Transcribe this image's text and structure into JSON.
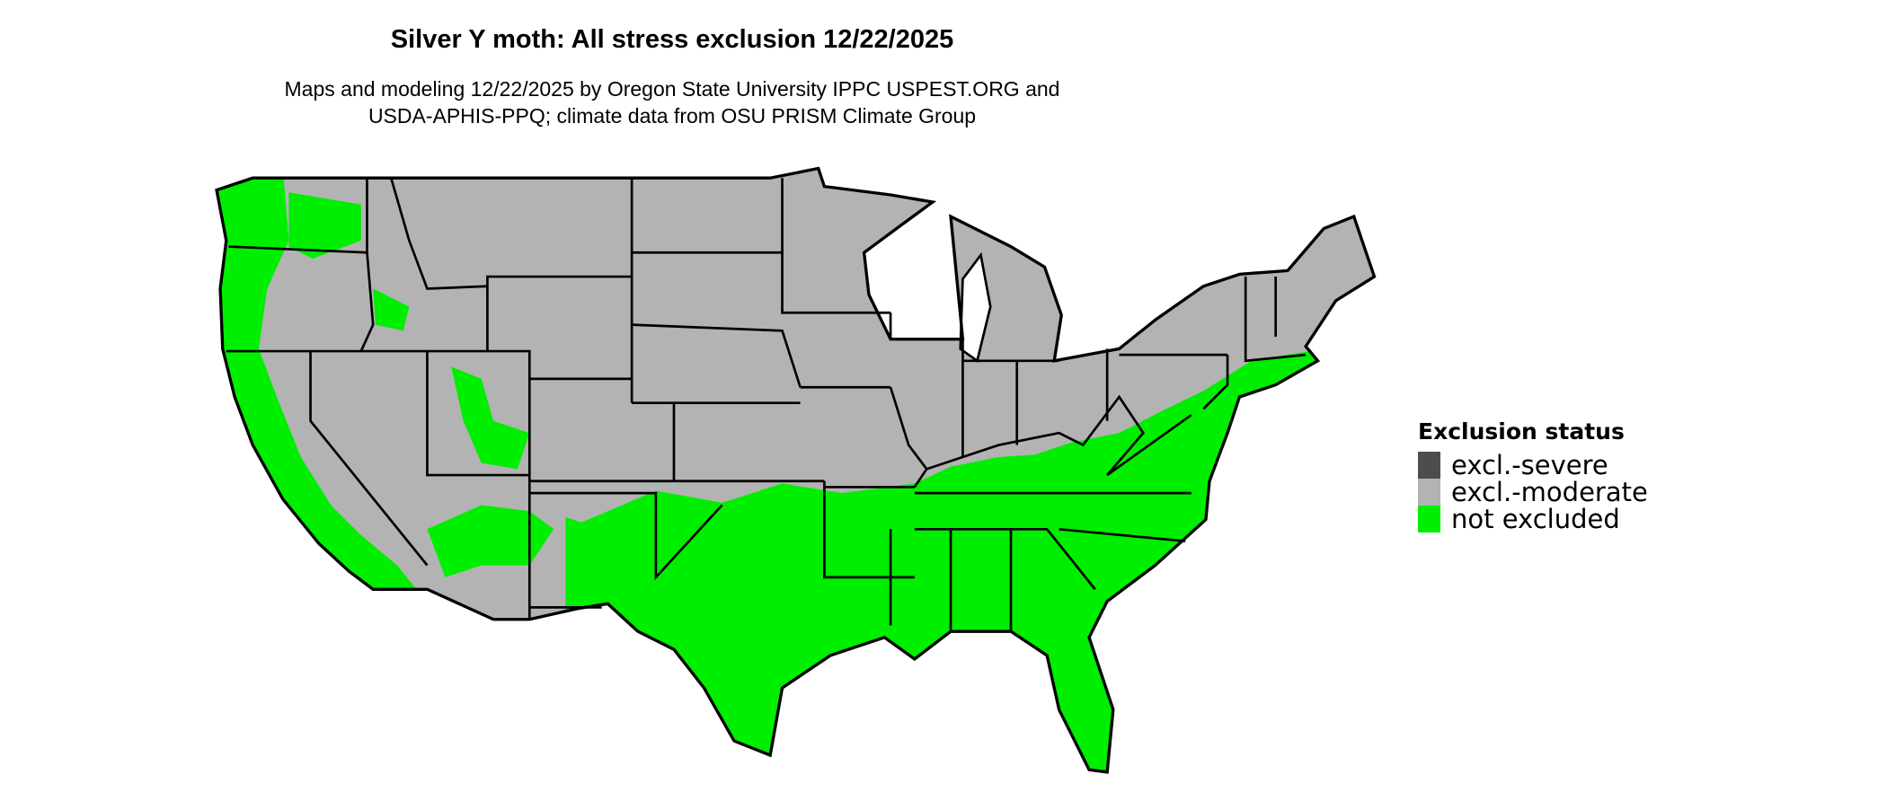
{
  "title": "Silver Y moth: All stress exclusion 12/22/2025",
  "subtitle_line1": "Maps and modeling 12/22/2025 by Oregon State University IPPC USPEST.ORG and",
  "subtitle_line2": "USDA-APHIS-PPQ; climate data from OSU PRISM Climate Group",
  "map": {
    "region": "Contiguous United States",
    "state_borders": true
  },
  "legend": {
    "title": "Exclusion status",
    "items": [
      {
        "label": "excl.-severe",
        "color": "#4d4d4d"
      },
      {
        "label": "excl.-moderate",
        "color": "#b3b3b3"
      },
      {
        "label": "not excluded",
        "color": "#00ee00"
      }
    ]
  }
}
